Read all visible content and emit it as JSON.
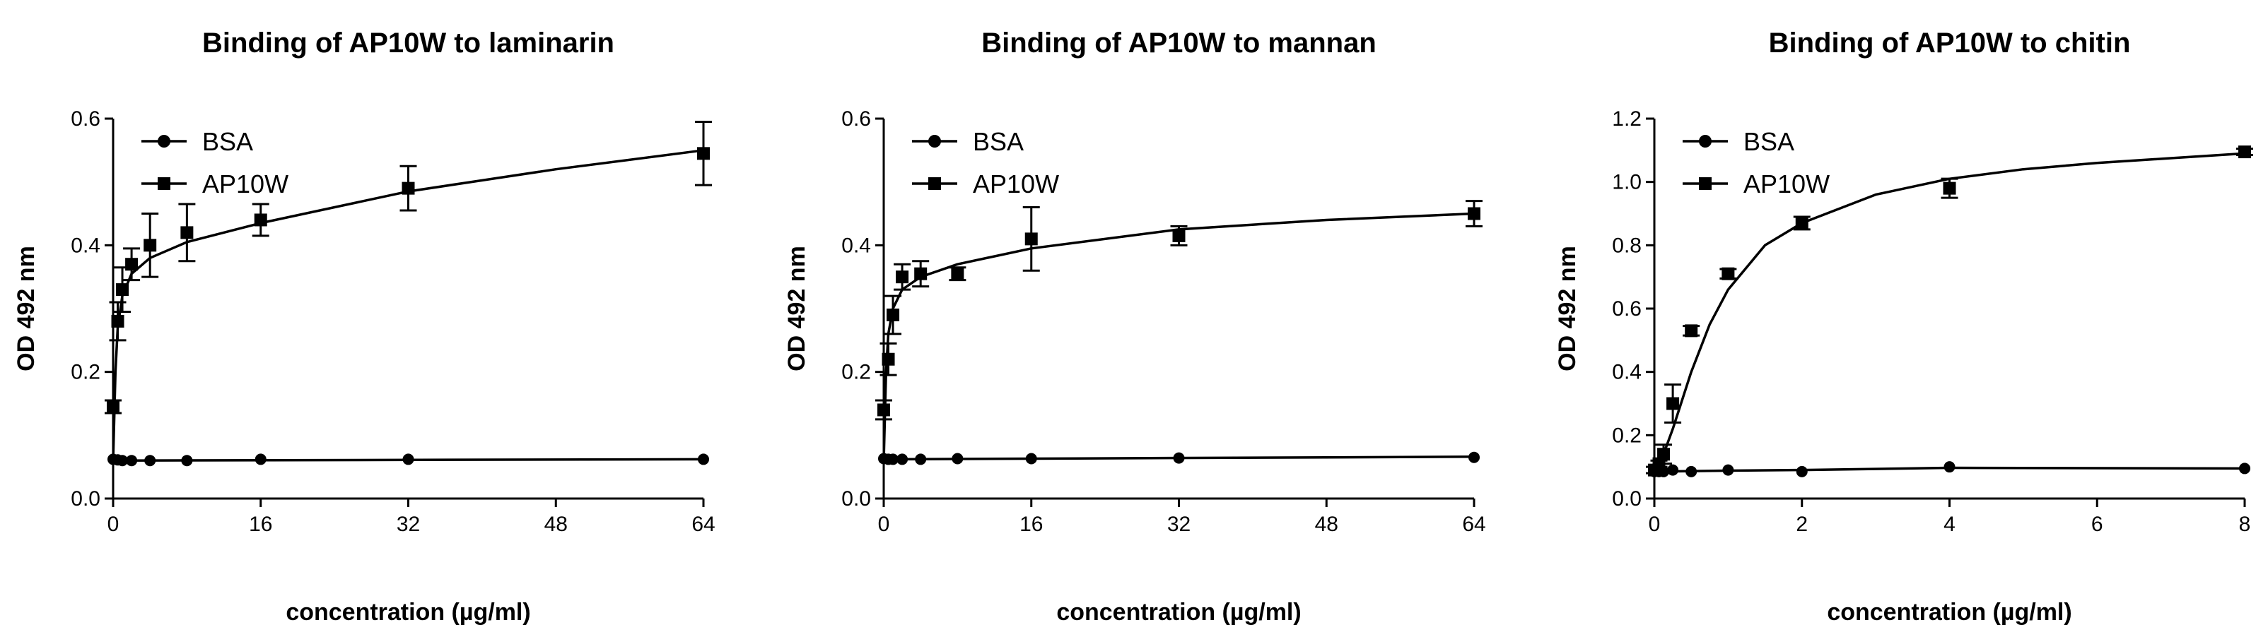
{
  "chart_data": [
    {
      "type": "scatter",
      "title": "Binding of AP10W to laminarin",
      "xlabel": "concentration (µg/ml)",
      "ylabel": "OD 492 nm",
      "xlim": [
        0,
        64
      ],
      "ylim": [
        0,
        0.6
      ],
      "xticks": [
        "0",
        "16",
        "32",
        "48",
        "64"
      ],
      "yticks": [
        "0.0",
        "0.2",
        "0.4",
        "0.6"
      ],
      "legend_position": "top-left",
      "series": [
        {
          "name": "BSA",
          "marker": "circle",
          "x": [
            0,
            0.5,
            1,
            2,
            4,
            8,
            16,
            32,
            64
          ],
          "y": [
            0.062,
            0.061,
            0.06,
            0.06,
            0.06,
            0.06,
            0.062,
            0.062,
            0.062
          ],
          "err": [
            0,
            0,
            0,
            0,
            0,
            0,
            0,
            0,
            0
          ],
          "fit": [
            [
              0,
              0.06
            ],
            [
              64,
              0.062
            ]
          ]
        },
        {
          "name": "AP10W",
          "marker": "square",
          "x": [
            0,
            0.5,
            1,
            2,
            4,
            8,
            16,
            32,
            64
          ],
          "y": [
            0.145,
            0.28,
            0.33,
            0.37,
            0.4,
            0.42,
            0.44,
            0.49,
            0.545
          ],
          "err": [
            0.01,
            0.03,
            0.035,
            0.025,
            0.05,
            0.045,
            0.025,
            0.035,
            0.05
          ],
          "fit": [
            [
              0,
              0.06
            ],
            [
              0.25,
              0.2
            ],
            [
              0.5,
              0.27
            ],
            [
              1,
              0.32
            ],
            [
              2,
              0.355
            ],
            [
              4,
              0.38
            ],
            [
              8,
              0.405
            ],
            [
              16,
              0.435
            ],
            [
              32,
              0.485
            ],
            [
              48,
              0.52
            ],
            [
              64,
              0.55
            ]
          ]
        }
      ]
    },
    {
      "type": "scatter",
      "title": "Binding of AP10W to mannan",
      "xlabel": "concentration (µg/ml)",
      "ylabel": "OD 492 nm",
      "xlim": [
        0,
        64
      ],
      "ylim": [
        0,
        0.6
      ],
      "xticks": [
        "0",
        "16",
        "32",
        "48",
        "64"
      ],
      "yticks": [
        "0.0",
        "0.2",
        "0.4",
        "0.6"
      ],
      "legend_position": "top-left",
      "series": [
        {
          "name": "BSA",
          "marker": "circle",
          "x": [
            0,
            0.5,
            1,
            2,
            4,
            8,
            16,
            32,
            64
          ],
          "y": [
            0.063,
            0.062,
            0.062,
            0.062,
            0.062,
            0.063,
            0.063,
            0.064,
            0.065
          ],
          "err": [
            0,
            0,
            0,
            0,
            0,
            0,
            0,
            0,
            0
          ],
          "fit": [
            [
              0,
              0.062
            ],
            [
              64,
              0.066
            ]
          ]
        },
        {
          "name": "AP10W",
          "marker": "square",
          "x": [
            0,
            0.5,
            1,
            2,
            4,
            8,
            16,
            32,
            64
          ],
          "y": [
            0.14,
            0.22,
            0.29,
            0.35,
            0.355,
            0.355,
            0.41,
            0.415,
            0.45
          ],
          "err": [
            0.015,
            0.025,
            0.03,
            0.02,
            0.02,
            0.01,
            0.05,
            0.015,
            0.02
          ],
          "fit": [
            [
              0,
              0.06
            ],
            [
              0.25,
              0.2
            ],
            [
              0.5,
              0.26
            ],
            [
              1,
              0.3
            ],
            [
              2,
              0.33
            ],
            [
              4,
              0.35
            ],
            [
              8,
              0.37
            ],
            [
              16,
              0.395
            ],
            [
              32,
              0.425
            ],
            [
              48,
              0.44
            ],
            [
              64,
              0.45
            ]
          ]
        }
      ]
    },
    {
      "type": "scatter",
      "title": "Binding of AP10W to chitin",
      "xlabel": "concentration (µg/ml)",
      "ylabel": "OD 492 nm",
      "xlim": [
        0,
        8
      ],
      "ylim": [
        0,
        1.2
      ],
      "xticks": [
        "0",
        "2",
        "4",
        "6",
        "8"
      ],
      "yticks": [
        "0.0",
        "0.2",
        "0.4",
        "0.6",
        "0.8",
        "1.0",
        "1.2"
      ],
      "legend_position": "top-left",
      "series": [
        {
          "name": "BSA",
          "marker": "circle",
          "x": [
            0,
            0.0625,
            0.125,
            0.25,
            0.5,
            1,
            2,
            4,
            8
          ],
          "y": [
            0.085,
            0.085,
            0.085,
            0.09,
            0.085,
            0.09,
            0.085,
            0.1,
            0.095
          ],
          "err": [
            0,
            0,
            0,
            0,
            0,
            0,
            0,
            0,
            0
          ],
          "fit": [
            [
              0,
              0.085
            ],
            [
              1,
              0.088
            ],
            [
              2,
              0.09
            ],
            [
              4,
              0.097
            ],
            [
              8,
              0.095
            ]
          ]
        },
        {
          "name": "AP10W",
          "marker": "square",
          "x": [
            0,
            0.0625,
            0.125,
            0.25,
            0.5,
            1,
            2,
            4,
            8
          ],
          "y": [
            0.09,
            0.11,
            0.14,
            0.3,
            0.53,
            0.71,
            0.87,
            0.98,
            1.095
          ],
          "err": [
            0.01,
            0.01,
            0.03,
            0.06,
            0.015,
            0.015,
            0.02,
            0.03,
            0.01
          ],
          "fit": [
            [
              0,
              0.08
            ],
            [
              0.125,
              0.14
            ],
            [
              0.25,
              0.22
            ],
            [
              0.5,
              0.4
            ],
            [
              0.75,
              0.55
            ],
            [
              1,
              0.66
            ],
            [
              1.5,
              0.8
            ],
            [
              2,
              0.87
            ],
            [
              3,
              0.96
            ],
            [
              4,
              1.01
            ],
            [
              5,
              1.04
            ],
            [
              6,
              1.06
            ],
            [
              7,
              1.075
            ],
            [
              8,
              1.09
            ]
          ]
        }
      ]
    }
  ]
}
